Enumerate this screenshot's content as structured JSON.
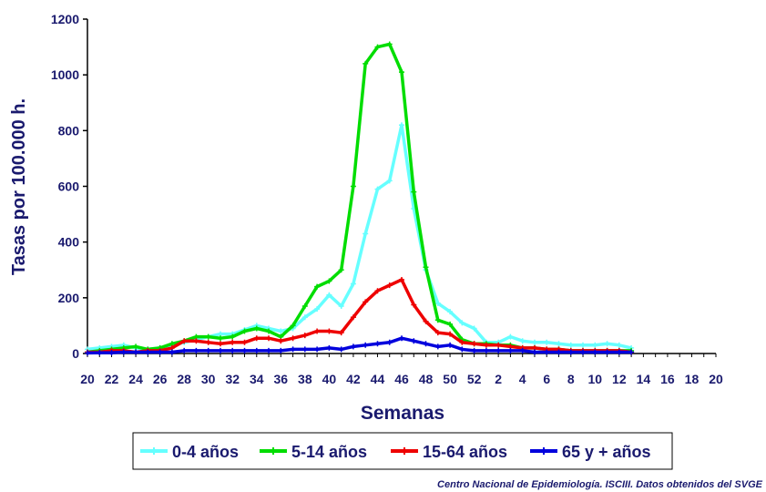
{
  "chart_data": {
    "type": "line",
    "xlabel": "Semanas",
    "ylabel": "Tasas por 100.000 h.",
    "ylim": [
      0,
      1200
    ],
    "yticks": [
      0,
      200,
      400,
      600,
      800,
      1000,
      1200
    ],
    "x_tick_labels": [
      "20",
      "22",
      "24",
      "26",
      "28",
      "30",
      "32",
      "34",
      "36",
      "38",
      "40",
      "42",
      "44",
      "46",
      "48",
      "50",
      "52",
      "2",
      "4",
      "6",
      "8",
      "10",
      "12",
      "14",
      "16",
      "18",
      "20"
    ],
    "x": [
      "20",
      "21",
      "22",
      "23",
      "24",
      "25",
      "26",
      "27",
      "28",
      "29",
      "30",
      "31",
      "32",
      "33",
      "34",
      "35",
      "36",
      "37",
      "38",
      "39",
      "40",
      "41",
      "42",
      "43",
      "44",
      "45",
      "46",
      "47",
      "48",
      "49",
      "50",
      "51",
      "52",
      "1",
      "2",
      "3",
      "4",
      "5",
      "6",
      "7",
      "8",
      "9",
      "10",
      "11",
      "12",
      "13"
    ],
    "series": [
      {
        "name": "0-4 años",
        "color": "#66ffff",
        "values": [
          15,
          20,
          25,
          30,
          20,
          15,
          20,
          30,
          40,
          50,
          60,
          70,
          70,
          85,
          100,
          90,
          80,
          90,
          130,
          160,
          210,
          170,
          250,
          430,
          590,
          620,
          820,
          520,
          300,
          180,
          150,
          110,
          90,
          40,
          40,
          60,
          45,
          40,
          40,
          35,
          30,
          30,
          30,
          35,
          30,
          20
        ]
      },
      {
        "name": "5-14 años",
        "color": "#00dd00",
        "values": [
          5,
          10,
          15,
          20,
          25,
          15,
          20,
          35,
          45,
          60,
          60,
          55,
          60,
          80,
          90,
          80,
          60,
          100,
          170,
          240,
          260,
          300,
          600,
          1040,
          1100,
          1110,
          1010,
          580,
          310,
          120,
          105,
          50,
          35,
          35,
          30,
          30,
          20,
          20,
          15,
          15,
          10,
          10,
          10,
          10,
          10,
          10
        ]
      },
      {
        "name": "15-64 años",
        "color": "#ee0000",
        "values": [
          5,
          5,
          10,
          10,
          5,
          10,
          10,
          20,
          45,
          45,
          40,
          35,
          40,
          40,
          55,
          55,
          45,
          55,
          65,
          80,
          80,
          75,
          130,
          185,
          225,
          245,
          265,
          175,
          115,
          75,
          70,
          40,
          35,
          30,
          30,
          25,
          20,
          20,
          15,
          15,
          10,
          10,
          10,
          10,
          10,
          5
        ]
      },
      {
        "name": "65 y + años",
        "color": "#0000dd",
        "values": [
          2,
          3,
          3,
          5,
          5,
          5,
          5,
          5,
          10,
          10,
          10,
          10,
          10,
          10,
          10,
          10,
          10,
          15,
          15,
          15,
          20,
          15,
          25,
          30,
          35,
          40,
          55,
          45,
          35,
          25,
          30,
          15,
          10,
          10,
          10,
          10,
          10,
          5,
          5,
          5,
          5,
          5,
          5,
          5,
          5,
          5
        ]
      }
    ]
  },
  "source_note": "Centro Nacional de Epidemiología. ISCIII. Datos obtenidos del SVGE"
}
